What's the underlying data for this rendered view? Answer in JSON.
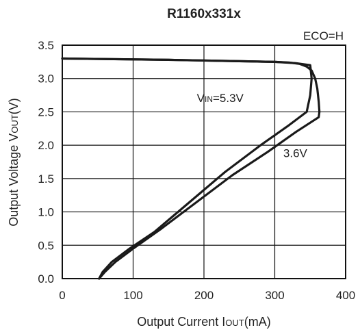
{
  "chart_data": {
    "type": "line",
    "title": "R1160x331x",
    "annotation_corner": "ECO=H",
    "xlabel": {
      "prefix": "Output Current I",
      "sub": "OUT",
      "suffix": "(mA)"
    },
    "ylabel": {
      "prefix": "Output Voltage V",
      "sub": "OUT",
      "suffix": "(V)"
    },
    "xlim": [
      0,
      400
    ],
    "ylim": [
      0,
      3.5
    ],
    "xticks": [
      0,
      100,
      200,
      300,
      400
    ],
    "xtick_labels": [
      "0",
      "100",
      "200",
      "300",
      "400"
    ],
    "yticks": [
      0,
      0.5,
      1.0,
      1.5,
      2.0,
      2.5,
      3.0,
      3.5
    ],
    "ytick_labels": [
      "0.0",
      "0.5",
      "1.0",
      "1.5",
      "2.0",
      "2.5",
      "3.0",
      "3.5"
    ],
    "grid": true,
    "line_color": "#1a1a1a",
    "series": [
      {
        "label_parts": {
          "prefix": "V",
          "sub": "IN",
          "suffix": "=5.3V"
        },
        "label_at": [
          190,
          2.65
        ],
        "x": [
          0,
          150,
          250,
          300,
          330,
          350,
          352,
          350,
          345,
          320,
          280,
          230,
          180,
          130,
          95,
          70,
          57,
          52
        ],
        "y": [
          3.3,
          3.28,
          3.26,
          3.25,
          3.23,
          3.2,
          3.0,
          2.75,
          2.5,
          2.3,
          2.0,
          1.6,
          1.15,
          0.7,
          0.45,
          0.25,
          0.1,
          0.0
        ]
      },
      {
        "label_parts": {
          "prefix": "3.6V",
          "sub": "",
          "suffix": ""
        },
        "label_at": [
          312,
          1.82
        ],
        "x": [
          0,
          150,
          250,
          300,
          320,
          335,
          345,
          352,
          357,
          360,
          362,
          363,
          362,
          330,
          290,
          240,
          190,
          140,
          100,
          75,
          60,
          52
        ],
        "y": [
          3.3,
          3.28,
          3.26,
          3.25,
          3.24,
          3.22,
          3.18,
          3.12,
          3.0,
          2.85,
          2.65,
          2.5,
          2.42,
          2.2,
          1.9,
          1.55,
          1.15,
          0.75,
          0.45,
          0.25,
          0.1,
          0.0
        ]
      }
    ]
  }
}
